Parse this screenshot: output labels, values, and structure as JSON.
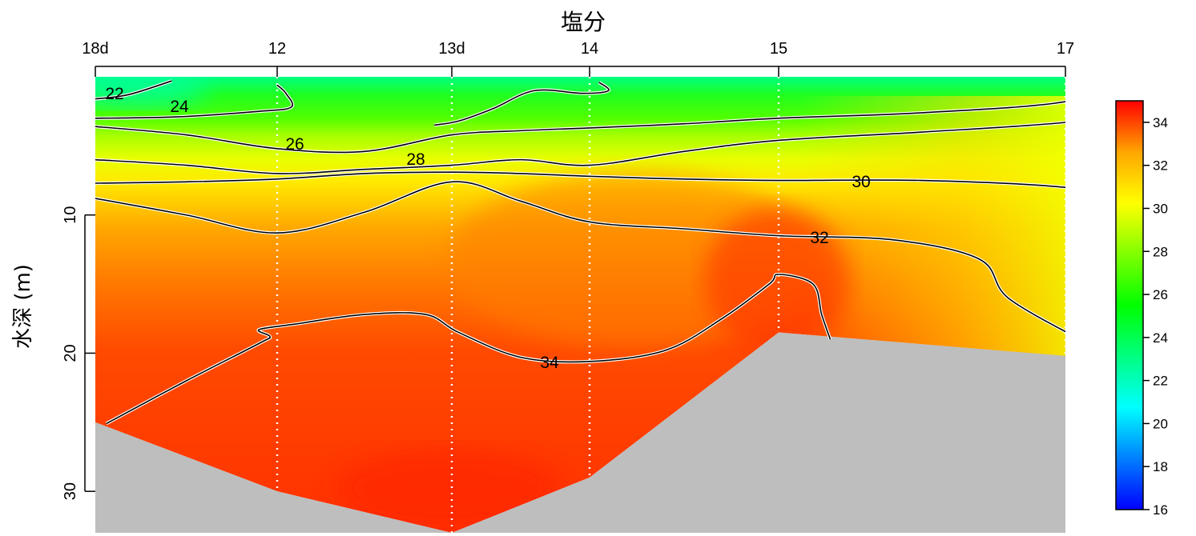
{
  "chart_data": {
    "type": "heatmap",
    "title": "塩分",
    "xlabel": "",
    "ylabel": "水深 (m)",
    "stations": [
      {
        "label": "18d",
        "bottom_depth": 25
      },
      {
        "label": "12",
        "bottom_depth": 30
      },
      {
        "label": "13d",
        "bottom_depth": 33
      },
      {
        "label": "14",
        "bottom_depth": 29
      },
      {
        "label": "15",
        "bottom_depth": 18.5
      },
      {
        "label": "17",
        "bottom_depth": 20.2
      }
    ],
    "y_ticks": [
      10,
      20,
      30
    ],
    "ylim": [
      0,
      33
    ],
    "colorbar": {
      "min": 16,
      "max": 35,
      "ticks": [
        16,
        18,
        20,
        22,
        24,
        26,
        28,
        30,
        32,
        34
      ],
      "stops": [
        "#0000ff",
        "#0080ff",
        "#00ffff",
        "#00ff80",
        "#00ff00",
        "#80ff00",
        "#ffff00",
        "#ffa500",
        "#ff0000"
      ]
    },
    "contours": [
      {
        "level": 22,
        "label": "22",
        "points": [
          [
            0,
            1.6
          ],
          [
            0.18,
            1.3
          ],
          [
            0.42,
            0.3
          ]
        ]
      },
      {
        "level": 24,
        "label": "24",
        "points": [
          [
            0,
            3.0
          ],
          [
            0.45,
            2.9
          ],
          [
            0.9,
            2.5
          ],
          [
            1.08,
            2.2
          ],
          [
            1.05,
            1.2
          ],
          [
            1.0,
            0.6
          ]
        ]
      },
      {
        "level": 24,
        "label": "",
        "points": [
          [
            1.9,
            3.5
          ],
          [
            2.05,
            3.2
          ],
          [
            2.3,
            2.3
          ],
          [
            2.6,
            1.0
          ],
          [
            2.95,
            1.2
          ],
          [
            3.1,
            1.0
          ],
          [
            3.05,
            0.4
          ]
        ]
      },
      {
        "level": 26,
        "label": "26",
        "points": [
          [
            0,
            3.6
          ],
          [
            0.5,
            4.2
          ],
          [
            1.0,
            5.2
          ],
          [
            1.5,
            5.4
          ],
          [
            2.0,
            4.2
          ],
          [
            2.5,
            3.9
          ],
          [
            3.0,
            3.7
          ],
          [
            3.5,
            3.4
          ],
          [
            4.0,
            3.0
          ],
          [
            4.5,
            2.6
          ],
          [
            5.0,
            1.8
          ],
          [
            5.23,
            0.1
          ]
        ]
      },
      {
        "level": 28,
        "label": "28",
        "points": [
          [
            0,
            6.0
          ],
          [
            0.5,
            6.4
          ],
          [
            1.0,
            7.0
          ],
          [
            1.5,
            6.7
          ],
          [
            2.0,
            6.4
          ],
          [
            2.5,
            6.0
          ],
          [
            3.0,
            6.4
          ],
          [
            3.5,
            5.4
          ],
          [
            4.0,
            4.6
          ],
          [
            4.5,
            4.0
          ],
          [
            5.0,
            3.3
          ],
          [
            5.25,
            2.4
          ]
        ]
      },
      {
        "level": 30,
        "label": "30",
        "points": [
          [
            0,
            7.7
          ],
          [
            0.5,
            7.6
          ],
          [
            1.0,
            7.4
          ],
          [
            1.5,
            7.0
          ],
          [
            2.0,
            6.9
          ],
          [
            2.5,
            7.0
          ],
          [
            3.0,
            7.2
          ],
          [
            3.5,
            7.4
          ],
          [
            4.0,
            7.5
          ],
          [
            4.5,
            7.5
          ],
          [
            5.0,
            8.0
          ],
          [
            5.25,
            9.0
          ],
          [
            5.5,
            10.0
          ]
        ]
      },
      {
        "level": 32,
        "label": "32",
        "points": [
          [
            0,
            8.8
          ],
          [
            0.5,
            10.0
          ],
          [
            1.0,
            11.3
          ],
          [
            1.5,
            9.8
          ],
          [
            2.0,
            7.6
          ],
          [
            2.5,
            9.0
          ],
          [
            3.0,
            10.5
          ],
          [
            3.5,
            11.0
          ],
          [
            4.0,
            11.5
          ],
          [
            4.4,
            11.8
          ],
          [
            4.7,
            13.2
          ],
          [
            4.8,
            16.0
          ],
          [
            5.05,
            19.0
          ]
        ]
      },
      {
        "level": 34,
        "label": "34",
        "points": [
          [
            0.06,
            25.1
          ],
          [
            0.5,
            22.0
          ],
          [
            0.9,
            19.3
          ],
          [
            0.96,
            18.8
          ],
          [
            0.9,
            18.3
          ],
          [
            1.1,
            17.9
          ],
          [
            1.5,
            17.2
          ],
          [
            1.85,
            17.2
          ],
          [
            2.05,
            18.5
          ],
          [
            2.5,
            20.3
          ],
          [
            3.0,
            20.6
          ],
          [
            3.4,
            19.8
          ],
          [
            3.7,
            17.5
          ],
          [
            3.95,
            15.0
          ],
          [
            4.0,
            14.3
          ],
          [
            4.12,
            15.0
          ],
          [
            4.15,
            17.2
          ],
          [
            4.18,
            19.0
          ]
        ]
      }
    ]
  }
}
